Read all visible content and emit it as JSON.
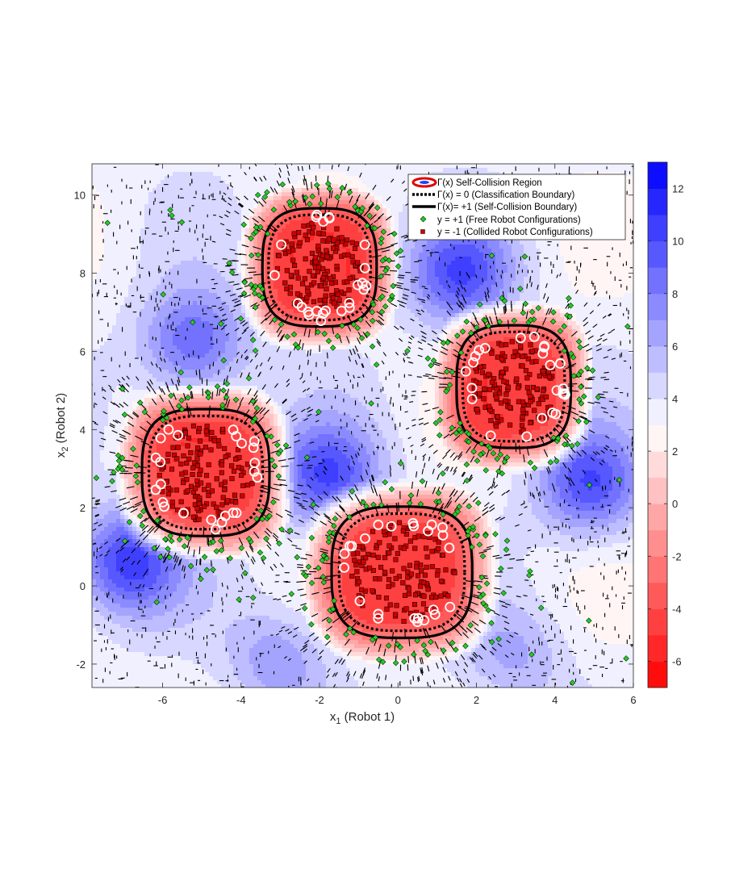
{
  "chart_data": {
    "type": "contour",
    "title": "",
    "xlabel": {
      "main": "x",
      "sub": "1",
      "suffix": " (Robot 1)"
    },
    "ylabel": {
      "main": "x",
      "sub": "2",
      "suffix": " (Robot 2)"
    },
    "xlim": [
      -7.8,
      6.0
    ],
    "ylim": [
      -2.6,
      10.8
    ],
    "xticks": [
      -6,
      -4,
      -2,
      0,
      2,
      4,
      6
    ],
    "xtick_labels": [
      "-6",
      "-4",
      "-2",
      "0",
      "2",
      "4",
      "6"
    ],
    "yticks": [
      -2,
      0,
      2,
      4,
      6,
      8,
      10
    ],
    "ytick_labels": [
      "-2",
      "0",
      "2",
      "4",
      "6",
      "8",
      "10"
    ],
    "colorbar": {
      "range": [
        -7,
        13
      ],
      "ticks": [
        -6,
        -4,
        -2,
        0,
        2,
        4,
        6,
        8,
        10,
        12
      ],
      "tick_labels": [
        "-6",
        "-4",
        "-2",
        "0",
        "2",
        "4",
        "6",
        "8",
        "10",
        "12"
      ],
      "levels": 20,
      "colors": {
        "low": "#ff0000",
        "mid": "#ffffff",
        "high": "#0000ff"
      }
    },
    "collision_regions": [
      {
        "cx": -2.0,
        "cy": 8.15,
        "rx": 1.3,
        "ry": 1.35
      },
      {
        "cx": 2.95,
        "cy": 5.1,
        "rx": 1.3,
        "ry": 1.4
      },
      {
        "cx": -4.9,
        "cy": 2.9,
        "rx": 1.45,
        "ry": 1.45
      },
      {
        "cx": 0.1,
        "cy": 0.35,
        "rx": 1.6,
        "ry": 1.5
      }
    ],
    "free_wells": [
      {
        "cx": -5.2,
        "cy": 6.2,
        "depth": 11
      },
      {
        "cx": -1.8,
        "cy": 2.8,
        "depth": 12
      },
      {
        "cx": 1.6,
        "cy": 8.0,
        "depth": 11.5
      },
      {
        "cx": 4.9,
        "cy": 2.6,
        "depth": 12
      },
      {
        "cx": -6.9,
        "cy": 0.6,
        "depth": 13
      },
      {
        "cx": -3.0,
        "cy": -1.9,
        "depth": 8
      },
      {
        "cx": 3.0,
        "cy": -1.8,
        "depth": 7
      }
    ],
    "legend": {
      "location": "top-right",
      "entries": [
        {
          "label": "Γ(x) Self-Collision Region",
          "marker": "ring"
        },
        {
          "label": "Γ(x) = 0 (Classification Boundary)",
          "marker": "dotted-line"
        },
        {
          "label": "Γ(x)= +1 (Self-Collision Boundary)",
          "marker": "solid-line"
        },
        {
          "label": "y = +1 (Free Robot Configurations)",
          "marker": "green-diamond"
        },
        {
          "label": "y = -1 (Collided Robot Configurations)",
          "marker": "red-square"
        }
      ]
    },
    "colors": {
      "free_marker": "#22cc22",
      "collided_marker": "#cc0000",
      "support_vector": "#ffffff",
      "boundary": "#000000"
    }
  }
}
